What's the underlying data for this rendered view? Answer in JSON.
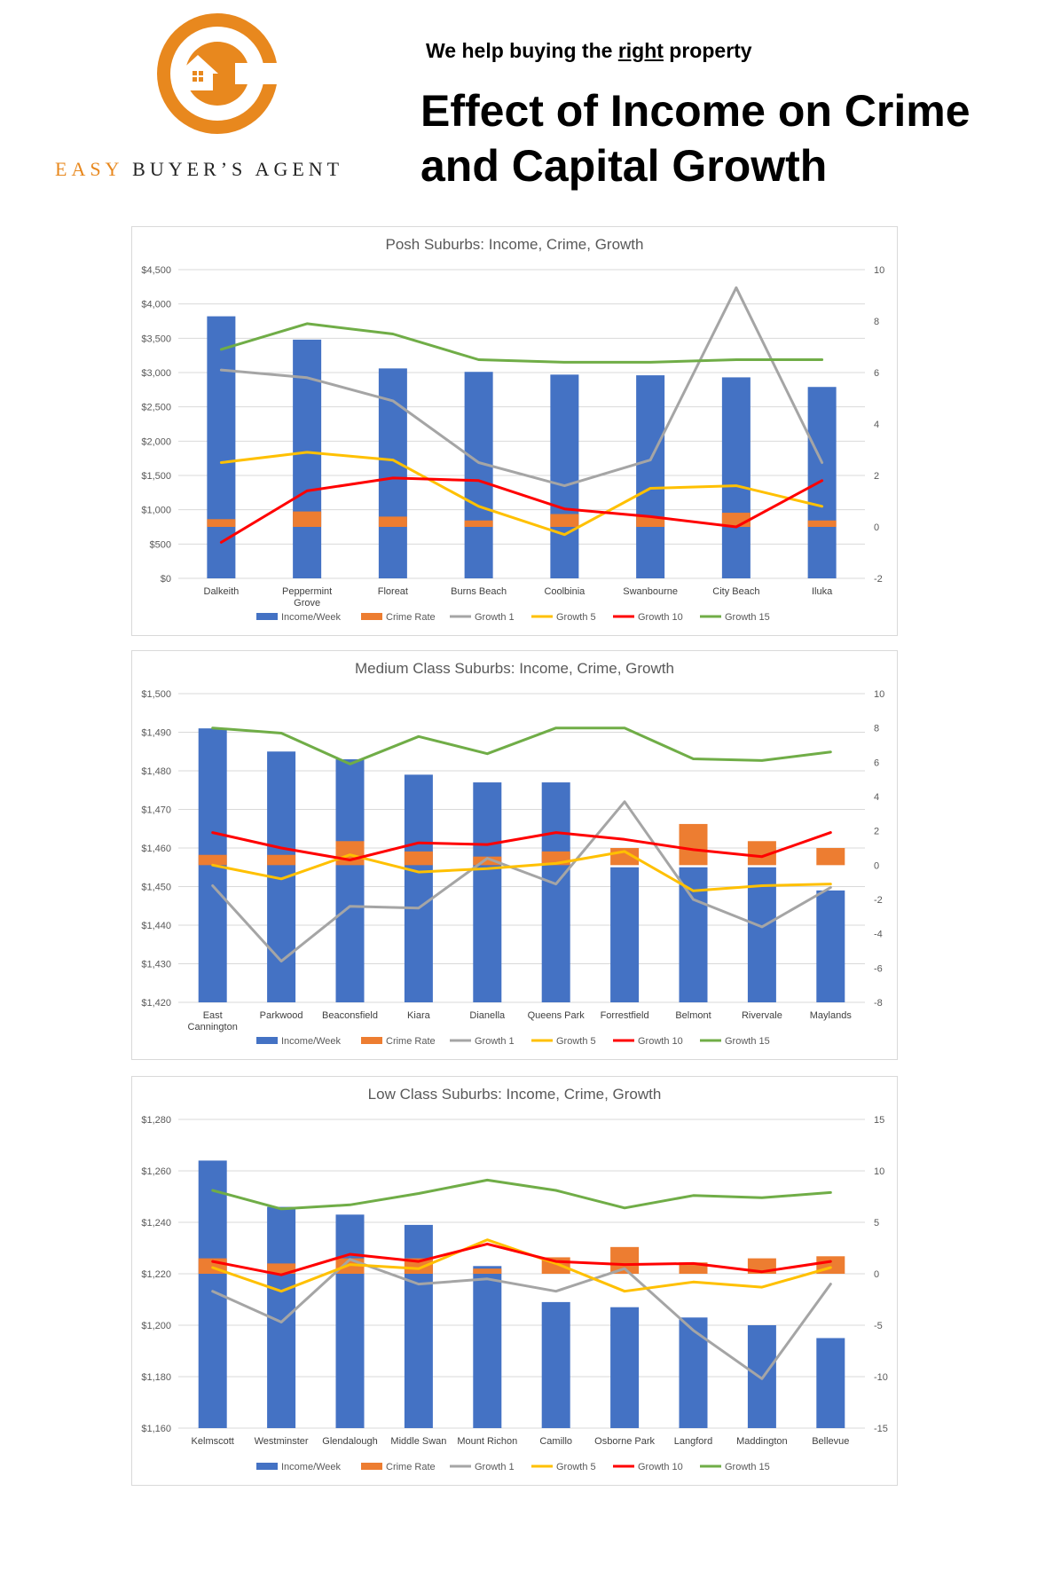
{
  "header": {
    "tagline_pre": "We help buying the ",
    "tagline_emph": "right",
    "tagline_post": " property",
    "title_line1": "Effect of Income on Crime",
    "title_line2": "and Capital Growth",
    "brand_easy": "EASY",
    "brand_rest": "BUYER’S AGENT"
  },
  "colors": {
    "brand_orange": "#E8881E",
    "income": "#4472C4",
    "crime": "#ED7D31",
    "growth1": "#A5A5A5",
    "growth5": "#FFC000",
    "growth10": "#FF0000",
    "growth15": "#70AD47"
  },
  "legend": [
    "Income/Week",
    "Crime Rate",
    "Growth 1",
    "Growth 5",
    "Growth 10",
    "Growth 15"
  ],
  "chart_data": [
    {
      "type": "bar",
      "title": "Posh Suburbs: Income, Crime, Growth",
      "categories": [
        "Dalkeith",
        "Peppermint Grove",
        "Floreat",
        "Burns Beach",
        "Coolbinia",
        "Swanbourne",
        "City Beach",
        "Iluka"
      ],
      "ylim": [
        0,
        4500
      ],
      "yticks": [
        0,
        500,
        1000,
        1500,
        2000,
        2500,
        3000,
        3500,
        4000,
        4500
      ],
      "y2lim": [
        -2,
        10
      ],
      "y2ticks": [
        -2,
        0,
        2,
        4,
        6,
        8,
        10
      ],
      "series": [
        {
          "name": "Income/Week",
          "axis": "left",
          "kind": "bar",
          "values": [
            3820,
            3480,
            3060,
            3010,
            2970,
            2960,
            2930,
            2790
          ]
        },
        {
          "name": "Crime Rate",
          "axis": "right",
          "kind": "stack",
          "base": 0,
          "values": [
            0.3,
            0.6,
            0.4,
            0.25,
            0.5,
            0.4,
            0.55,
            0.25
          ]
        },
        {
          "name": "Growth 1",
          "axis": "right",
          "kind": "line",
          "values": [
            6.1,
            5.8,
            4.9,
            2.5,
            1.6,
            2.6,
            9.3,
            2.5
          ]
        },
        {
          "name": "Growth 5",
          "axis": "right",
          "kind": "line",
          "values": [
            2.5,
            2.9,
            2.6,
            0.8,
            -0.3,
            1.5,
            1.6,
            0.8
          ]
        },
        {
          "name": "Growth 10",
          "axis": "right",
          "kind": "line",
          "values": [
            -0.6,
            1.4,
            1.9,
            1.8,
            0.7,
            0.4,
            0.0,
            1.8
          ]
        },
        {
          "name": "Growth 15",
          "axis": "right",
          "kind": "line",
          "values": [
            6.9,
            7.9,
            7.5,
            6.5,
            6.4,
            6.4,
            6.5,
            6.5
          ]
        }
      ]
    },
    {
      "type": "bar",
      "title": "Medium Class Suburbs: Income, Crime, Growth",
      "categories": [
        "East Cannington",
        "Parkwood",
        "Beaconsfield",
        "Kiara",
        "Dianella",
        "Queens Park",
        "Forrestfield",
        "Belmont",
        "Rivervale",
        "Maylands"
      ],
      "ylim": [
        1420,
        1500
      ],
      "yticks": [
        1420,
        1430,
        1440,
        1450,
        1460,
        1470,
        1480,
        1490,
        1500
      ],
      "y2lim": [
        -8,
        10
      ],
      "y2ticks": [
        -8,
        -6,
        -4,
        -2,
        0,
        2,
        4,
        6,
        8,
        10
      ],
      "series": [
        {
          "name": "Income/Week",
          "axis": "left",
          "kind": "bar",
          "values": [
            1491,
            1485,
            1483,
            1479,
            1477,
            1477,
            1455,
            1455,
            1455,
            1449
          ]
        },
        {
          "name": "Crime Rate",
          "axis": "right",
          "kind": "stack",
          "base": 0,
          "values": [
            0.6,
            0.6,
            1.4,
            0.8,
            0.5,
            0.8,
            1.0,
            2.4,
            1.4,
            1.0
          ]
        },
        {
          "name": "Growth 1",
          "axis": "right",
          "kind": "line",
          "values": [
            -1.2,
            -5.6,
            -2.4,
            -2.5,
            0.4,
            -1.1,
            3.7,
            -2.0,
            -3.6,
            -1.3
          ]
        },
        {
          "name": "Growth 5",
          "axis": "right",
          "kind": "line",
          "values": [
            0.0,
            -0.8,
            0.6,
            -0.4,
            -0.2,
            0.1,
            0.8,
            -1.5,
            -1.2,
            -1.1
          ]
        },
        {
          "name": "Growth 10",
          "axis": "right",
          "kind": "line",
          "values": [
            1.9,
            1.0,
            0.3,
            1.3,
            1.2,
            1.9,
            1.5,
            0.9,
            0.5,
            1.9
          ]
        },
        {
          "name": "Growth 15",
          "axis": "right",
          "kind": "line",
          "values": [
            8.0,
            7.7,
            5.9,
            7.5,
            6.5,
            8.0,
            8.0,
            6.2,
            6.1,
            6.6
          ]
        }
      ]
    },
    {
      "type": "bar",
      "title": "Low Class Suburbs: Income, Crime, Growth",
      "categories": [
        "Kelmscott",
        "Westminster",
        "Glendalough",
        "Middle Swan",
        "Mount Richon",
        "Camillo",
        "Osborne Park",
        "Langford",
        "Maddington",
        "Bellevue"
      ],
      "ylim": [
        1160,
        1280
      ],
      "yticks": [
        1160,
        1180,
        1200,
        1220,
        1240,
        1260,
        1280
      ],
      "y2lim": [
        -15,
        15
      ],
      "y2ticks": [
        -15,
        -10,
        -5,
        0,
        5,
        10,
        15
      ],
      "series": [
        {
          "name": "Income/Week",
          "axis": "left",
          "kind": "bar",
          "values": [
            1264,
            1246,
            1243,
            1239,
            1223,
            1209,
            1207,
            1203,
            1200,
            1195
          ]
        },
        {
          "name": "Crime Rate",
          "axis": "right",
          "kind": "stack",
          "base": 0,
          "values": [
            1.5,
            1.0,
            1.5,
            1.5,
            0.5,
            1.6,
            2.6,
            1.1,
            1.5,
            1.7
          ]
        },
        {
          "name": "Growth 1",
          "axis": "right",
          "kind": "line",
          "values": [
            -1.7,
            -4.7,
            1.4,
            -1.0,
            -0.5,
            -1.7,
            0.5,
            -5.5,
            -10.2,
            -1.0
          ]
        },
        {
          "name": "Growth 5",
          "axis": "right",
          "kind": "line",
          "values": [
            0.6,
            -1.7,
            0.9,
            0.5,
            3.3,
            1.0,
            -1.7,
            -0.8,
            -1.3,
            0.6
          ]
        },
        {
          "name": "Growth 10",
          "axis": "right",
          "kind": "line",
          "values": [
            1.2,
            -0.1,
            1.9,
            1.2,
            2.9,
            1.2,
            0.9,
            1.0,
            0.2,
            1.2
          ]
        },
        {
          "name": "Growth 15",
          "axis": "right",
          "kind": "line",
          "values": [
            8.1,
            6.3,
            6.7,
            7.8,
            9.1,
            8.1,
            6.4,
            7.6,
            7.4,
            7.9
          ]
        }
      ]
    }
  ]
}
